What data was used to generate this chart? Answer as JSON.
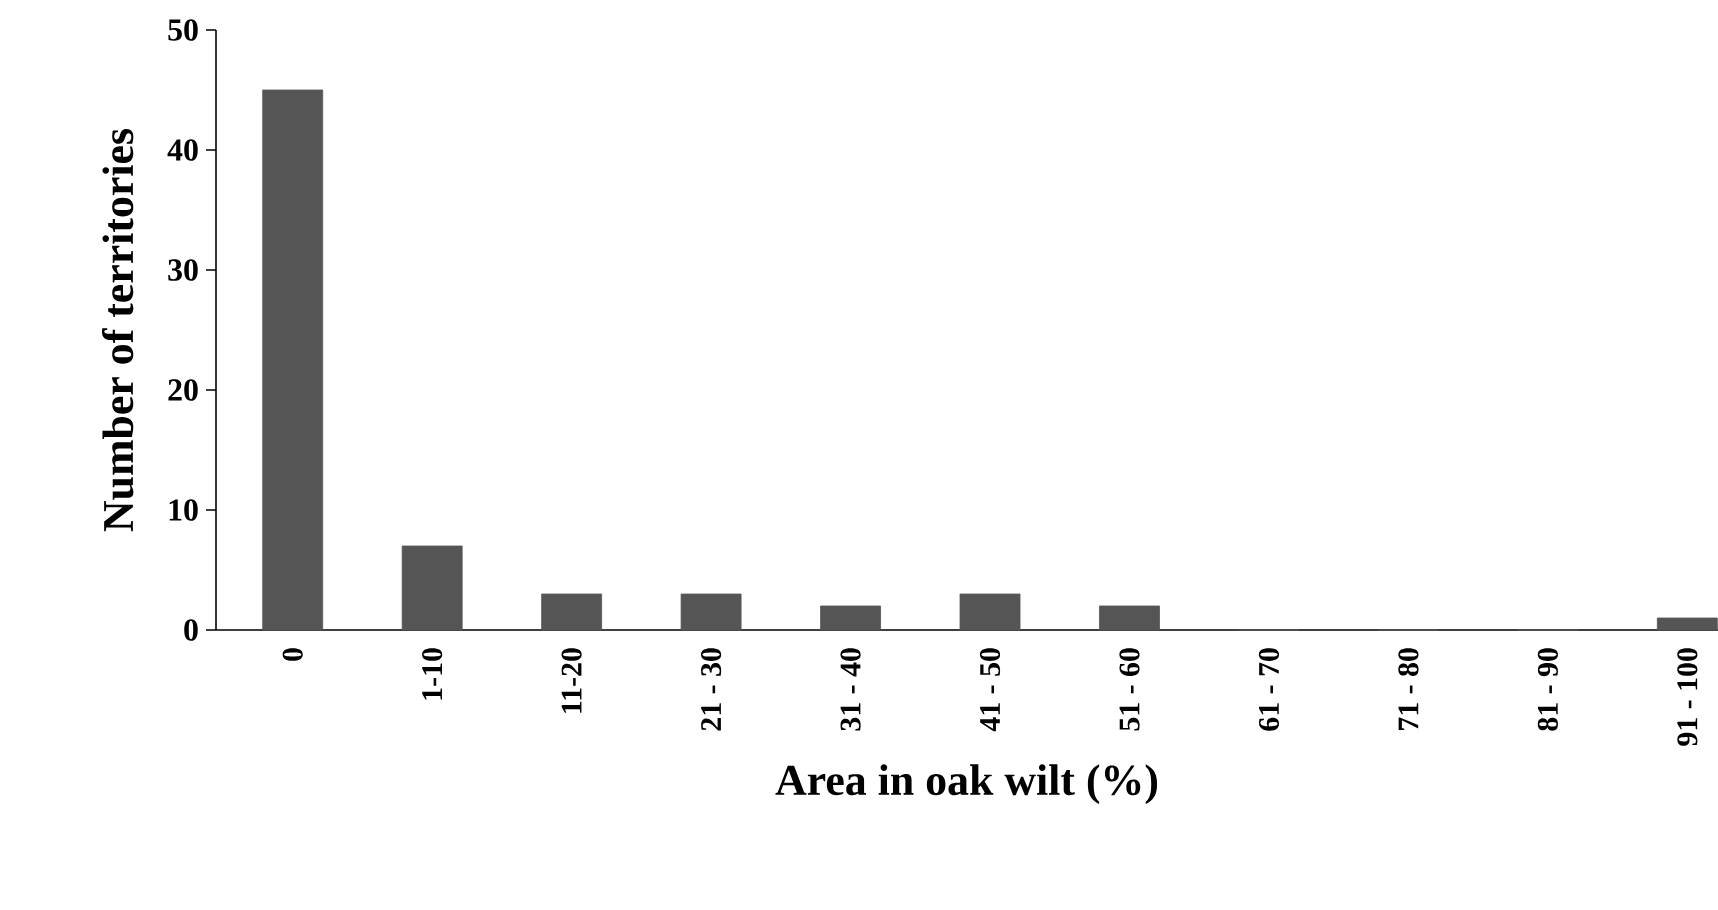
{
  "chart_data": {
    "type": "bar",
    "xlabel": "Area in oak wilt (%)",
    "ylabel": "Number of territories",
    "categories": [
      "0",
      "1-10",
      "11-20",
      "21 - 30",
      "31 - 40",
      "41 - 50",
      "51 - 60",
      "61 - 70",
      "71 - 80",
      "81 - 90",
      "91 - 100"
    ],
    "values": [
      45,
      7,
      3,
      3,
      2,
      3,
      2,
      0,
      0,
      0,
      1
    ],
    "color": "#555555",
    "ylim": [
      0,
      50
    ],
    "yticks": [
      0,
      10,
      20,
      30,
      40,
      50
    ],
    "grid": false
  }
}
